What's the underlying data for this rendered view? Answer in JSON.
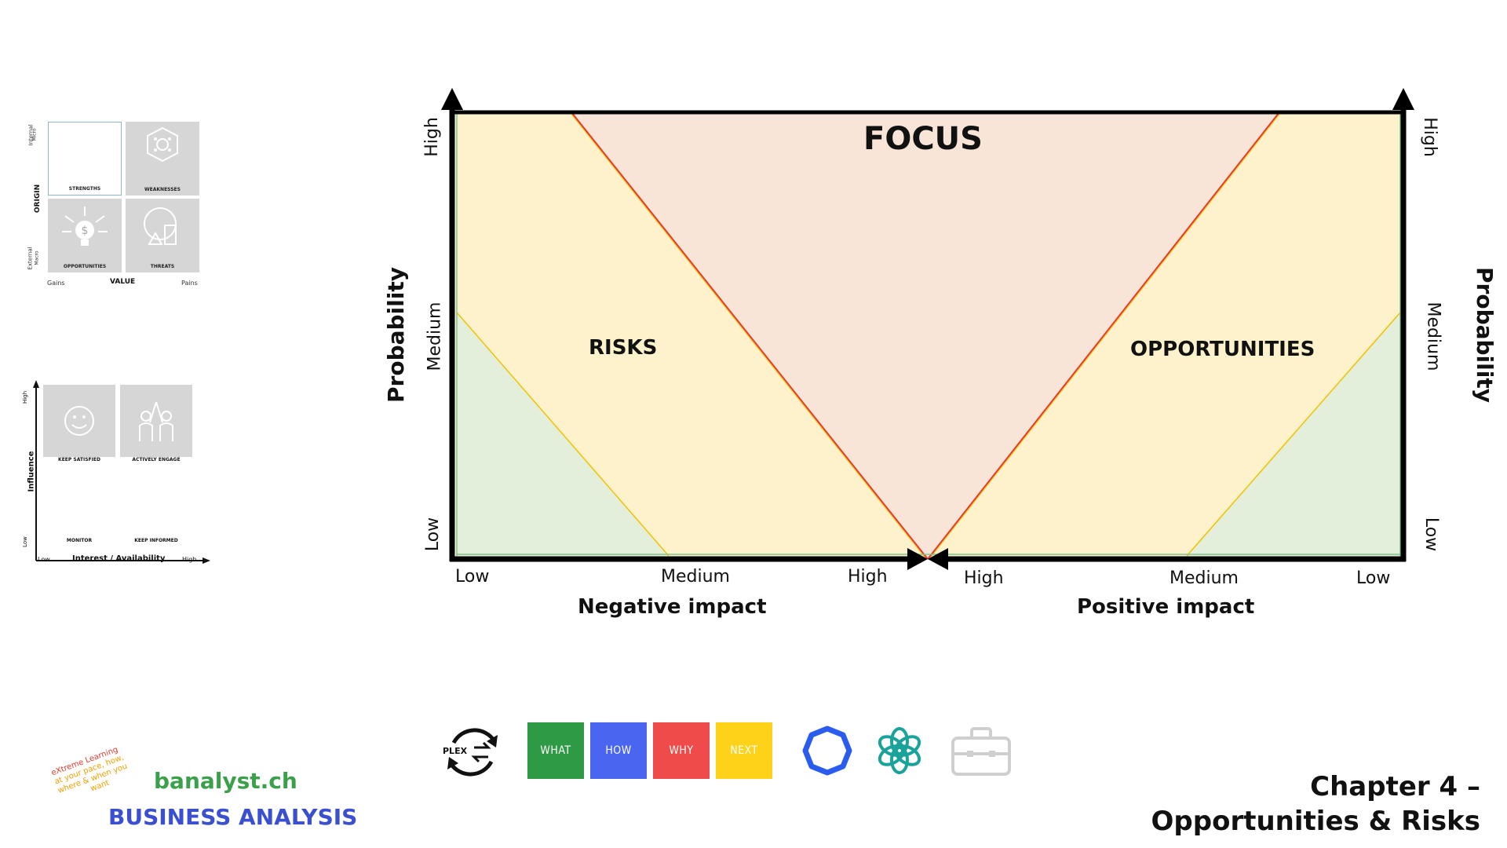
{
  "swot": {
    "cells": [
      "STRENGTHS",
      "WEAKNESSES",
      "OPPORTUNITIES",
      "THREATS"
    ],
    "y_axis_title": "ORIGIN",
    "y_top_label": "Internal",
    "y_top_sub": "Micro",
    "y_bottom_label": "External",
    "y_bottom_sub": "Macro",
    "x_axis_title": "VALUE",
    "x_left": "Gains",
    "x_right": "Pains"
  },
  "stakeholder": {
    "cells": [
      "KEEP SATISFIED",
      "ACTIVELY ENGAGE",
      "MONITOR",
      "KEEP INFORMED"
    ],
    "y_axis_title": "Influence",
    "y_high": "High",
    "y_low": "Low",
    "x_axis_title": "Interest / Availability",
    "x_low": "Low",
    "x_high": "High"
  },
  "diagram": {
    "focus_label": "FOCUS",
    "risks_label": "RISKS",
    "opportunities_label": "OPPORTUNITIES",
    "y_axis_left": "Probability",
    "y_axis_right": "Probability",
    "y_ticks_left": [
      "High",
      "Medium",
      "Low"
    ],
    "y_ticks_right": [
      "High",
      "Medium",
      "Low"
    ],
    "x_ticks_negative": [
      "Low",
      "Medium",
      "High"
    ],
    "x_ticks_positive": [
      "High",
      "Medium",
      "Low"
    ],
    "x_axis_negative": "Negative impact",
    "x_axis_positive": "Positive impact",
    "colors": {
      "focus": "#f9e4d8",
      "yellow": "#fdf2cc",
      "green": "#e3eedb",
      "red_line": "#e23a2c",
      "yellow_line": "#f2c200"
    }
  },
  "footer": {
    "tagline": [
      "eXtreme Learning",
      "at your pace, how,",
      "where & when you",
      "want"
    ],
    "site": "banalyst.ch",
    "brand": "BUSINESS ANALYSIS",
    "chapter_line1": "Chapter 4 –",
    "chapter_line2": "Opportunities & Risks"
  },
  "toolbar": {
    "plex_label": "PLEX",
    "what": "WHAT",
    "how": "HOW",
    "why": "WHY",
    "next": "NEXT",
    "what_color": "#2f9a45",
    "how_color": "#4a66f0",
    "why_color": "#ef4b4b",
    "next_color": "#ffd21a"
  }
}
